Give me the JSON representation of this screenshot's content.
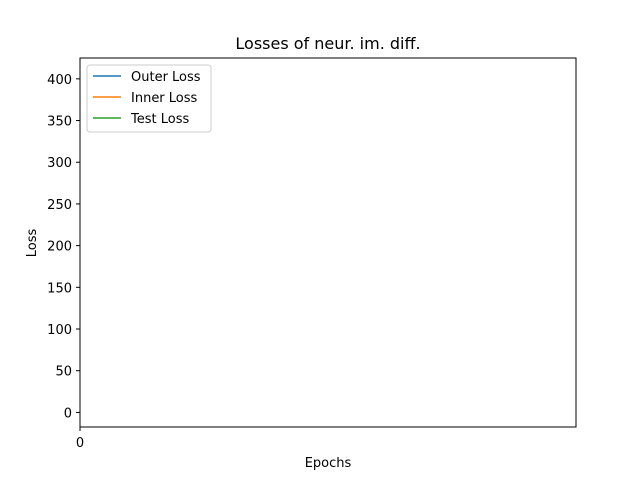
{
  "chart_data": {
    "type": "line",
    "title": "Losses of neur. im. diff.",
    "xlabel": "Epochs",
    "ylabel": "Loss",
    "xlim": [
      0,
      1
    ],
    "ylim": [
      -17.5,
      425
    ],
    "x_ticks": [
      "0"
    ],
    "x_tick_values": [
      0
    ],
    "y_ticks": [
      0,
      50,
      100,
      150,
      200,
      250,
      300,
      350,
      400
    ],
    "grid": false,
    "legend_position": "top-left",
    "series": [
      {
        "name": "Outer Loss",
        "color": "#1f77b4",
        "x": [],
        "y": []
      },
      {
        "name": "Inner Loss",
        "color": "#ff7f0e",
        "x": [],
        "y": []
      },
      {
        "name": "Test Loss",
        "color": "#2ca02c",
        "x": [],
        "y": []
      }
    ]
  }
}
